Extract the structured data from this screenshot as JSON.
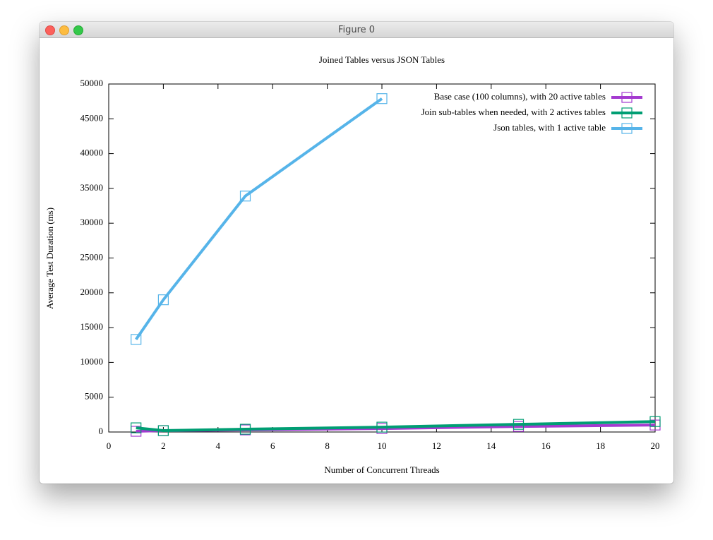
{
  "window": {
    "title": "Figure 0"
  },
  "chart_data": {
    "type": "line",
    "title": "Joined Tables versus JSON Tables",
    "x_label": "Number of Concurrent Threads",
    "y_label": "Average Test Duration (ms)",
    "xlim": [
      0,
      20
    ],
    "xticks": [
      0,
      2,
      4,
      6,
      8,
      10,
      12,
      14,
      16,
      18,
      20
    ],
    "ylim": [
      0,
      50000
    ],
    "yticks": [
      0,
      5000,
      10000,
      15000,
      20000,
      25000,
      30000,
      35000,
      40000,
      45000,
      50000
    ],
    "grid": false,
    "legend": "top-right",
    "marker": "square",
    "series": [
      {
        "name": "Base case (100 columns), with 20 active tables",
        "color": "#a43ad0",
        "x": [
          1,
          2,
          5,
          10,
          15,
          20
        ],
        "values": [
          100,
          200,
          300,
          500,
          800,
          1000
        ]
      },
      {
        "name": "Join sub-tables when needed, with 2 actives tables",
        "color": "#009e73",
        "x": [
          1,
          2,
          5,
          10,
          15,
          20
        ],
        "values": [
          600,
          200,
          400,
          700,
          1100,
          1500
        ]
      },
      {
        "name": "Json tables, with 1 active table",
        "color": "#56b4e9",
        "x": [
          1,
          2,
          5,
          10
        ],
        "values": [
          13300,
          19000,
          33900,
          47900
        ]
      }
    ]
  }
}
